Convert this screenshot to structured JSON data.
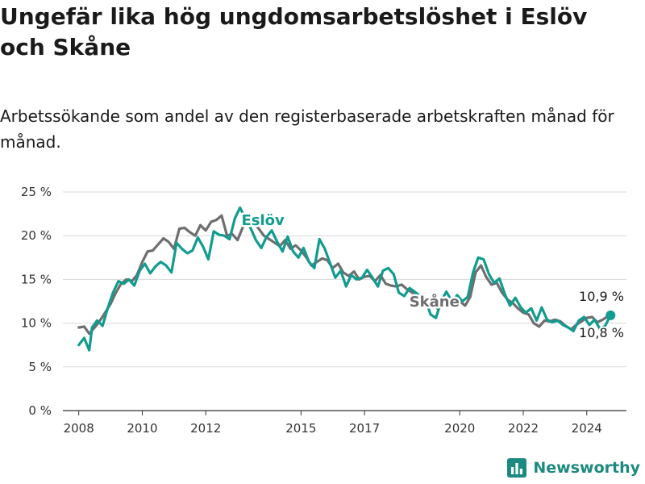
{
  "title": "Ungefär lika hög ungdomsarbetslöshet i Eslöv och Skåne",
  "subtitle": "Arbetssökande som andel av den registerbaserade arbetskraften månad för månad.",
  "brand": {
    "name": "Newsworthy",
    "color": "#1c8a80"
  },
  "colors": {
    "eslov": "#129b8f",
    "skane": "#6e6e70",
    "grid": "#d9d9d9"
  },
  "chart_data": {
    "type": "line",
    "title": "Ungefär lika hög ungdomsarbetslöshet i Eslöv och Skåne",
    "xlabel": "",
    "ylabel": "",
    "xlim": [
      2007.5,
      2025.25
    ],
    "ylim": [
      0,
      25
    ],
    "grid": true,
    "yticks": [
      0,
      5,
      10,
      15,
      20,
      25
    ],
    "ytick_labels": [
      "0 %",
      "5 %",
      "10 %",
      "15 %",
      "20 %",
      "25 %"
    ],
    "xticks": [
      2008,
      2010,
      2012,
      2015,
      2017,
      2020,
      2022,
      2024
    ],
    "series": [
      {
        "name": "Skåne",
        "color": "#6e6e70",
        "end_label": "10,8 %",
        "points": [
          [
            2008.0,
            9.5
          ],
          [
            2008.17,
            9.6
          ],
          [
            2008.33,
            8.8
          ],
          [
            2008.5,
            9.5
          ],
          [
            2008.67,
            10.3
          ],
          [
            2008.83,
            11.2
          ],
          [
            2009.0,
            12.2
          ],
          [
            2009.17,
            13.5
          ],
          [
            2009.33,
            14.5
          ],
          [
            2009.5,
            15.0
          ],
          [
            2009.67,
            14.8
          ],
          [
            2009.83,
            15.5
          ],
          [
            2010.0,
            17.0
          ],
          [
            2010.17,
            18.2
          ],
          [
            2010.33,
            18.3
          ],
          [
            2010.5,
            19.0
          ],
          [
            2010.67,
            19.7
          ],
          [
            2010.83,
            19.3
          ],
          [
            2011.0,
            18.5
          ],
          [
            2011.17,
            20.8
          ],
          [
            2011.33,
            20.9
          ],
          [
            2011.5,
            20.4
          ],
          [
            2011.67,
            20.0
          ],
          [
            2011.83,
            21.2
          ],
          [
            2012.0,
            20.6
          ],
          [
            2012.17,
            21.6
          ],
          [
            2012.33,
            21.8
          ],
          [
            2012.5,
            22.3
          ],
          [
            2012.67,
            20.0
          ],
          [
            2012.83,
            20.2
          ],
          [
            2013.0,
            19.5
          ],
          [
            2013.17,
            21.0
          ],
          [
            2013.33,
            21.9
          ],
          [
            2013.5,
            21.5
          ],
          [
            2013.67,
            20.8
          ],
          [
            2013.83,
            20.0
          ],
          [
            2014.0,
            19.6
          ],
          [
            2014.17,
            19.2
          ],
          [
            2014.33,
            18.8
          ],
          [
            2014.5,
            19.5
          ],
          [
            2014.67,
            18.5
          ],
          [
            2014.83,
            18.9
          ],
          [
            2015.0,
            18.3
          ],
          [
            2015.17,
            17.5
          ],
          [
            2015.33,
            16.6
          ],
          [
            2015.5,
            17.0
          ],
          [
            2015.67,
            17.4
          ],
          [
            2015.83,
            17.2
          ],
          [
            2016.0,
            16.3
          ],
          [
            2016.17,
            16.8
          ],
          [
            2016.33,
            15.8
          ],
          [
            2016.5,
            15.4
          ],
          [
            2016.67,
            15.9
          ],
          [
            2016.83,
            15.0
          ],
          [
            2017.0,
            15.3
          ],
          [
            2017.17,
            15.4
          ],
          [
            2017.33,
            14.8
          ],
          [
            2017.5,
            15.5
          ],
          [
            2017.67,
            14.5
          ],
          [
            2017.83,
            14.3
          ],
          [
            2018.0,
            14.2
          ],
          [
            2018.17,
            14.4
          ],
          [
            2018.33,
            13.9
          ],
          [
            2018.5,
            13.5
          ],
          [
            2018.67,
            12.9
          ],
          [
            2018.83,
            13.1
          ],
          [
            2019.0,
            12.4
          ],
          [
            2019.17,
            12.0
          ],
          [
            2019.33,
            11.6
          ],
          [
            2019.5,
            12.4
          ],
          [
            2019.67,
            12.6
          ],
          [
            2019.83,
            12.1
          ],
          [
            2020.0,
            12.5
          ],
          [
            2020.17,
            12.0
          ],
          [
            2020.33,
            13.0
          ],
          [
            2020.5,
            15.8
          ],
          [
            2020.67,
            16.6
          ],
          [
            2020.83,
            15.3
          ],
          [
            2021.0,
            14.4
          ],
          [
            2021.17,
            14.6
          ],
          [
            2021.33,
            13.5
          ],
          [
            2021.5,
            12.7
          ],
          [
            2021.67,
            12.3
          ],
          [
            2021.83,
            11.7
          ],
          [
            2022.0,
            11.2
          ],
          [
            2022.17,
            11.0
          ],
          [
            2022.33,
            10.0
          ],
          [
            2022.5,
            9.6
          ],
          [
            2022.67,
            10.3
          ],
          [
            2022.83,
            10.2
          ],
          [
            2023.0,
            10.4
          ],
          [
            2023.17,
            10.2
          ],
          [
            2023.33,
            9.7
          ],
          [
            2023.5,
            9.3
          ],
          [
            2023.67,
            9.8
          ],
          [
            2023.83,
            10.2
          ],
          [
            2024.0,
            10.6
          ],
          [
            2024.17,
            10.7
          ],
          [
            2024.33,
            10.1
          ],
          [
            2024.5,
            10.4
          ],
          [
            2024.67,
            10.8
          ]
        ]
      },
      {
        "name": "Eslöv",
        "color": "#129b8f",
        "end_label": "10,9 %",
        "points": [
          [
            2008.0,
            7.5
          ],
          [
            2008.17,
            8.3
          ],
          [
            2008.33,
            6.9
          ],
          [
            2008.42,
            9.5
          ],
          [
            2008.58,
            10.3
          ],
          [
            2008.75,
            9.7
          ],
          [
            2008.92,
            11.8
          ],
          [
            2009.08,
            13.5
          ],
          [
            2009.25,
            14.8
          ],
          [
            2009.42,
            14.5
          ],
          [
            2009.58,
            15.0
          ],
          [
            2009.75,
            14.3
          ],
          [
            2009.92,
            16.0
          ],
          [
            2010.08,
            16.8
          ],
          [
            2010.25,
            15.7
          ],
          [
            2010.42,
            16.5
          ],
          [
            2010.58,
            17.0
          ],
          [
            2010.75,
            16.6
          ],
          [
            2010.92,
            15.8
          ],
          [
            2011.08,
            19.2
          ],
          [
            2011.25,
            18.5
          ],
          [
            2011.42,
            18.0
          ],
          [
            2011.58,
            18.3
          ],
          [
            2011.75,
            19.8
          ],
          [
            2011.92,
            18.7
          ],
          [
            2012.08,
            17.3
          ],
          [
            2012.25,
            20.5
          ],
          [
            2012.42,
            20.1
          ],
          [
            2012.58,
            20.0
          ],
          [
            2012.75,
            19.6
          ],
          [
            2012.92,
            22.0
          ],
          [
            2013.08,
            23.2
          ],
          [
            2013.25,
            22.0
          ],
          [
            2013.42,
            20.8
          ],
          [
            2013.58,
            19.5
          ],
          [
            2013.75,
            18.6
          ],
          [
            2013.92,
            19.9
          ],
          [
            2014.08,
            20.6
          ],
          [
            2014.25,
            19.3
          ],
          [
            2014.42,
            18.2
          ],
          [
            2014.58,
            19.9
          ],
          [
            2014.75,
            18.2
          ],
          [
            2014.92,
            17.5
          ],
          [
            2015.08,
            18.6
          ],
          [
            2015.25,
            17.0
          ],
          [
            2015.42,
            16.3
          ],
          [
            2015.58,
            19.6
          ],
          [
            2015.75,
            18.5
          ],
          [
            2015.92,
            16.8
          ],
          [
            2016.08,
            15.2
          ],
          [
            2016.25,
            16.0
          ],
          [
            2016.42,
            14.2
          ],
          [
            2016.58,
            15.5
          ],
          [
            2016.75,
            15.0
          ],
          [
            2016.92,
            15.2
          ],
          [
            2017.08,
            16.1
          ],
          [
            2017.25,
            15.2
          ],
          [
            2017.42,
            14.2
          ],
          [
            2017.58,
            16.0
          ],
          [
            2017.75,
            16.3
          ],
          [
            2017.92,
            15.6
          ],
          [
            2018.08,
            13.5
          ],
          [
            2018.25,
            13.1
          ],
          [
            2018.42,
            14.0
          ],
          [
            2018.58,
            13.6
          ],
          [
            2018.75,
            13.1
          ],
          [
            2018.92,
            12.8
          ],
          [
            2019.08,
            11.0
          ],
          [
            2019.25,
            10.6
          ],
          [
            2019.42,
            12.6
          ],
          [
            2019.58,
            13.6
          ],
          [
            2019.75,
            12.5
          ],
          [
            2019.92,
            13.2
          ],
          [
            2020.08,
            12.5
          ],
          [
            2020.25,
            13.0
          ],
          [
            2020.42,
            15.8
          ],
          [
            2020.58,
            17.5
          ],
          [
            2020.75,
            17.3
          ],
          [
            2020.92,
            15.6
          ],
          [
            2021.08,
            14.6
          ],
          [
            2021.25,
            15.1
          ],
          [
            2021.42,
            13.3
          ],
          [
            2021.58,
            12.0
          ],
          [
            2021.75,
            12.9
          ],
          [
            2021.92,
            11.8
          ],
          [
            2022.08,
            11.2
          ],
          [
            2022.25,
            11.7
          ],
          [
            2022.42,
            10.3
          ],
          [
            2022.58,
            11.8
          ],
          [
            2022.75,
            10.4
          ],
          [
            2022.92,
            10.1
          ],
          [
            2023.08,
            10.3
          ],
          [
            2023.25,
            9.8
          ],
          [
            2023.42,
            9.5
          ],
          [
            2023.58,
            9.1
          ],
          [
            2023.75,
            10.3
          ],
          [
            2023.92,
            10.7
          ],
          [
            2024.08,
            9.8
          ],
          [
            2024.25,
            10.4
          ],
          [
            2024.42,
            9.3
          ],
          [
            2024.58,
            9.7
          ],
          [
            2024.75,
            10.9
          ]
        ]
      }
    ],
    "annotations": [
      {
        "text": "Eslöv",
        "series": "Eslöv",
        "x": 2013.8,
        "y": 21.2
      },
      {
        "text": "Skåne",
        "series": "Skåne",
        "x": 2019.2,
        "y": 11.9
      }
    ]
  }
}
